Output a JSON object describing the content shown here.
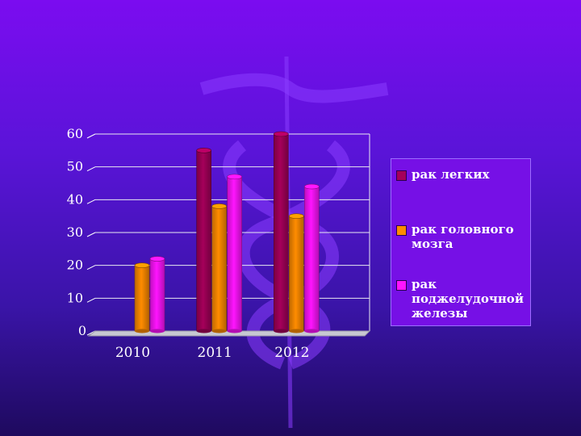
{
  "chart_data": {
    "type": "bar",
    "categories": [
      "2010",
      "2011",
      "2012"
    ],
    "series": [
      {
        "name": "рак легких",
        "values": [
          0,
          55,
          60
        ],
        "color": "#a5005a"
      },
      {
        "name": "рак головного мозга",
        "values": [
          20,
          38,
          35
        ],
        "color": "#ff8c00"
      },
      {
        "name": "рак поджелудочной железы",
        "values": [
          22,
          47,
          44
        ],
        "color": "#ff14ff"
      }
    ],
    "yticks": [
      "0",
      "10",
      "20",
      "30",
      "40",
      "50",
      "60"
    ],
    "ylim": [
      0,
      60
    ],
    "grid": true,
    "legend_position": "right"
  }
}
